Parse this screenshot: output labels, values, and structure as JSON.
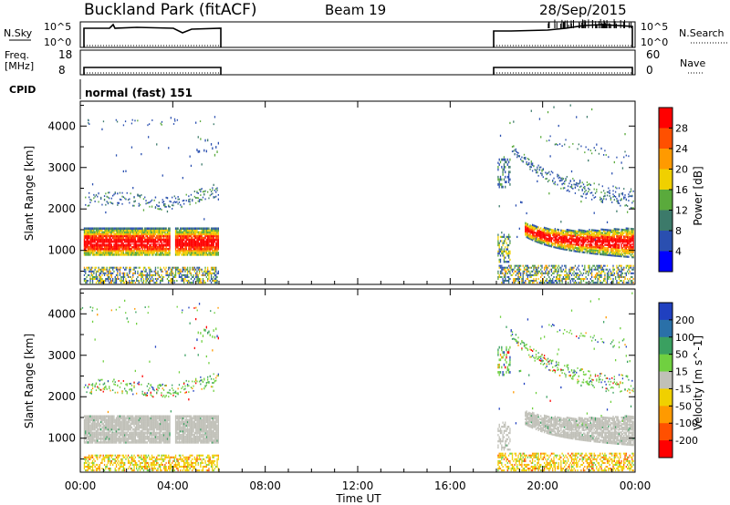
{
  "header": {
    "station": "Buckland Park (fitACF)",
    "beam": "Beam 19",
    "date": "28/Sep/2015"
  },
  "strips": {
    "nsky_label": "N.Sky",
    "nsky_ticks": [
      "10^5",
      "10^0"
    ],
    "nsearch_label": "N.Search",
    "freq_label_1": "Freq.",
    "freq_label_2": "[MHz]",
    "freq_ticks": [
      "18",
      "8"
    ],
    "nave_label": "Nave",
    "nave_ticks": [
      "60",
      "0"
    ],
    "cpid_label": "CPID",
    "cpid_text": "normal (fast) 151"
  },
  "chart_data": [
    {
      "type": "heatmap",
      "name": "Power",
      "ylabel": "Slant Range [km]",
      "yticks": [
        1000,
        2000,
        3000,
        4000
      ],
      "ylim": [
        180,
        4600
      ],
      "colorbar_label": "Power [dB]",
      "colorbar_ticks": [
        "28",
        "24",
        "20",
        "16",
        "12",
        "8",
        "4"
      ],
      "colorbar_colors": [
        "#ff0000",
        "#ff5000",
        "#ff9a00",
        "#f0d000",
        "#5aaa3c",
        "#3c7a6a",
        "#2a4fb0",
        "#0000ff"
      ],
      "data_time_ranges_ut": [
        [
          "00:00",
          "06:00"
        ],
        [
          "18:00",
          "24:00"
        ]
      ]
    },
    {
      "type": "heatmap",
      "name": "Velocity",
      "ylabel": "Slant Range [km]",
      "yticks": [
        1000,
        2000,
        3000,
        4000
      ],
      "ylim": [
        180,
        4600
      ],
      "colorbar_label": "Velocity [m s^-1]",
      "colorbar_ticks": [
        "200",
        "100",
        "50",
        "15",
        "-15",
        "-50",
        "-100",
        "-200"
      ],
      "colorbar_colors": [
        "#2040c0",
        "#2a70a8",
        "#3aa060",
        "#70d040",
        "#c0c0b8",
        "#f0d000",
        "#ff9a00",
        "#ff5000",
        "#ff0000"
      ],
      "data_time_ranges_ut": [
        [
          "00:00",
          "06:00"
        ],
        [
          "18:00",
          "24:00"
        ]
      ]
    }
  ],
  "xaxis": {
    "ticks": [
      "00:00",
      "04:00",
      "08:00",
      "12:00",
      "16:00",
      "20:00",
      "00:00"
    ],
    "label": "Time UT"
  }
}
